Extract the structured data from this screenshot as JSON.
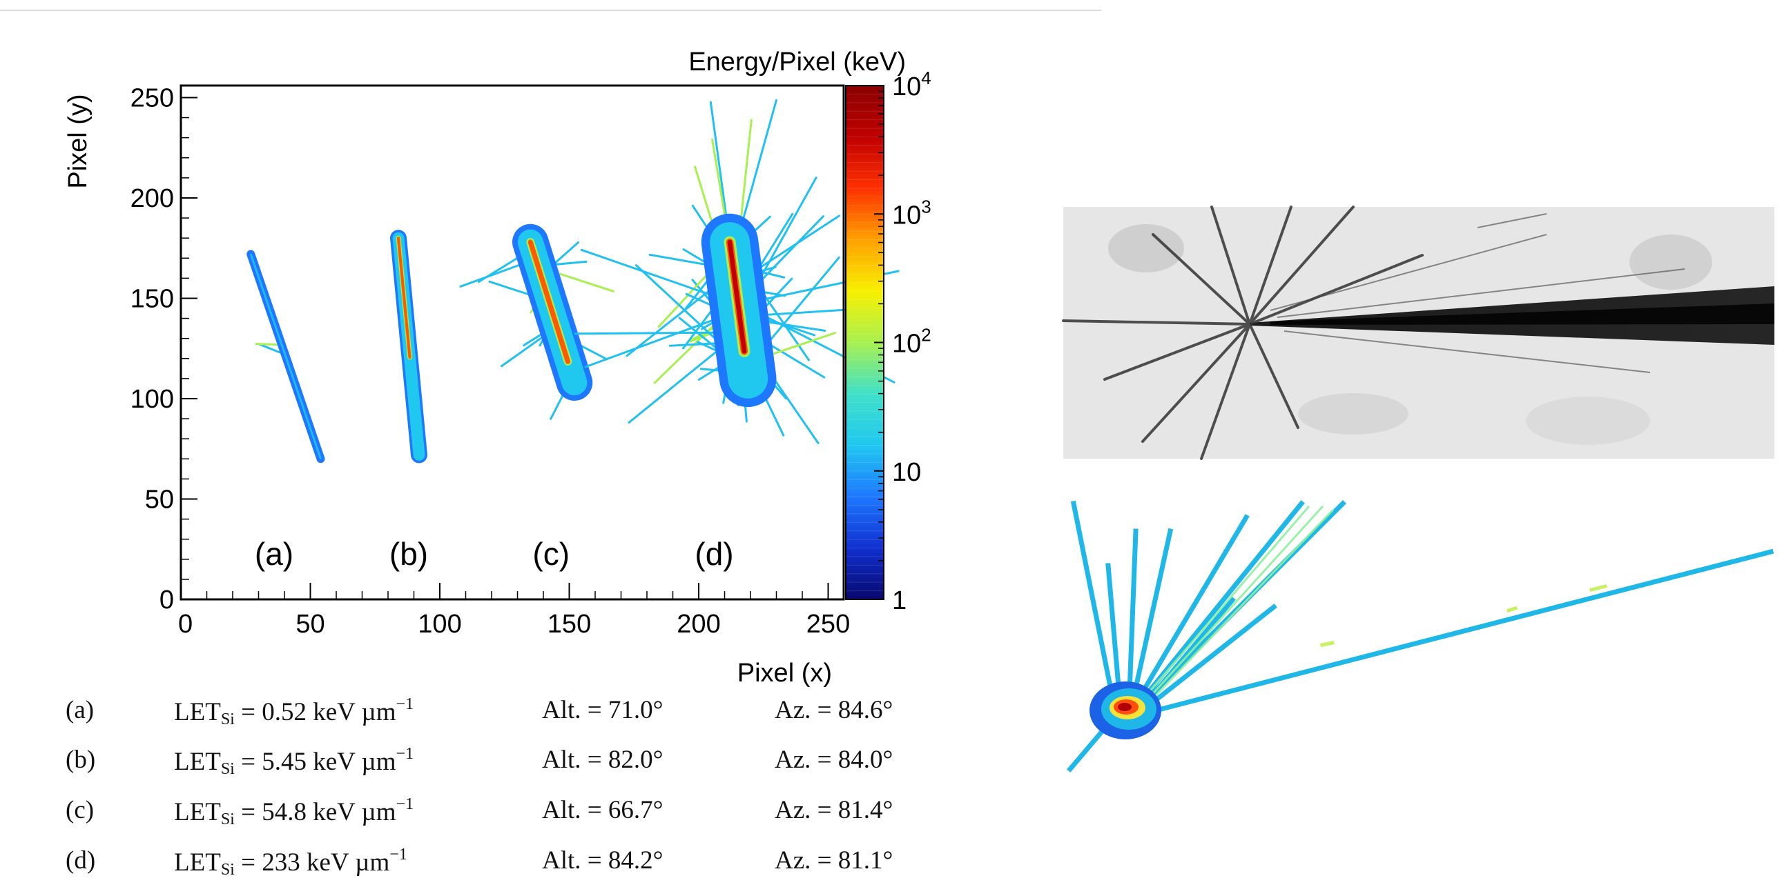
{
  "chart_data": {
    "type": "heatmap",
    "xlabel": "Pixel (x)",
    "ylabel": "Pixel (y)",
    "colorbar_label": "Energy/Pixel (keV)",
    "xlim": [
      0,
      256
    ],
    "ylim": [
      0,
      256
    ],
    "x_ticks": [
      0,
      50,
      100,
      150,
      200,
      250
    ],
    "y_ticks": [
      0,
      50,
      100,
      150,
      200,
      250
    ],
    "colorbar_scale": "log",
    "colorbar_range": [
      1,
      10000
    ],
    "colorbar_ticks": [
      {
        "value": 1,
        "base": "1",
        "exp": ""
      },
      {
        "value": 10,
        "base": "10",
        "exp": ""
      },
      {
        "value": 100,
        "base": "10",
        "exp": "2"
      },
      {
        "value": 1000,
        "base": "10",
        "exp": "3"
      },
      {
        "value": 10000,
        "base": "10",
        "exp": "4"
      }
    ],
    "colormap": [
      "#08086e",
      "#1030d0",
      "#1e78ff",
      "#20c8f0",
      "#40e0c8",
      "#a8f050",
      "#f8f000",
      "#ffa000",
      "#ff3000",
      "#c00000",
      "#8a0000"
    ],
    "tracks": [
      {
        "label": "(a)",
        "label_x": 36,
        "label_y": 22,
        "start": [
          27,
          172
        ],
        "end": [
          54,
          70
        ],
        "core_width": 0,
        "halo_width": 1.6,
        "core_fraction": 0
      },
      {
        "label": "(b)",
        "label_x": 88,
        "label_y": 22,
        "start": [
          84,
          180
        ],
        "end": [
          92,
          72
        ],
        "core_width": 1.4,
        "halo_width": 3.2,
        "core_fraction": 0.55
      },
      {
        "label": "(c)",
        "label_x": 143,
        "label_y": 22,
        "start": [
          135,
          178
        ],
        "end": [
          152,
          108
        ],
        "core_width": 2.4,
        "halo_width": 7,
        "core_fraction": 0.85
      },
      {
        "label": "(d)",
        "label_x": 206,
        "label_y": 22,
        "start": [
          212,
          178
        ],
        "end": [
          219,
          110
        ],
        "core_width": 3.5,
        "halo_width": 11,
        "core_fraction": 0.8
      }
    ]
  },
  "caption_rows": [
    {
      "label": "(a)",
      "let_prefix": "LET",
      "let_sub": "Si",
      "let_value": " = 0.52 keV µm",
      "let_exp": "−1",
      "alt": "Alt.  = 71.0°",
      "az": "Az.  = 84.6°"
    },
    {
      "label": "(b)",
      "let_prefix": "LET",
      "let_sub": "Si",
      "let_value": " = 5.45 keV µm",
      "let_exp": "−1",
      "alt": "Alt.  = 82.0°",
      "az": "Az.  = 84.0°"
    },
    {
      "label": "(c)",
      "let_prefix": "LET",
      "let_sub": "Si",
      "let_value": " = 54.8 keV µm",
      "let_exp": "−1",
      "alt": "Alt.  = 66.7°",
      "az": "Az.  = 81.4°"
    },
    {
      "label": "(d)",
      "let_prefix": "LET",
      "let_sub": "Si",
      "let_value": " = 233 keV µm",
      "let_exp": "−1",
      "alt": "Alt.  = 84.2°",
      "az": "Az.  = 81.1°"
    }
  ]
}
